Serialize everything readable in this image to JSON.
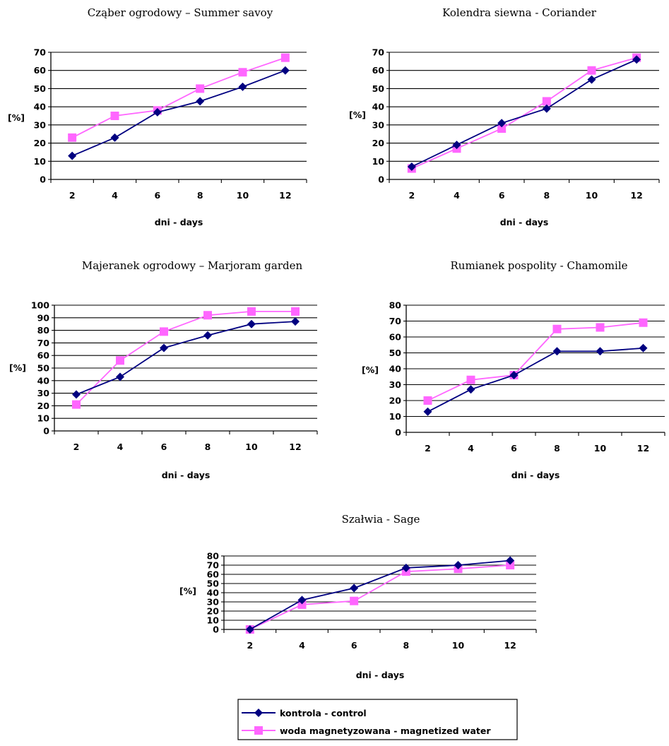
{
  "chart_data": [
    {
      "type": "line",
      "title": "Cząber ogrodowy – Summer savoy",
      "xlabel": "dni - days",
      "ylabel": "[%]",
      "categories": [
        "2",
        "4",
        "6",
        "8",
        "10",
        "12"
      ],
      "ylim": [
        0,
        70
      ],
      "ytick_step": 10,
      "grid": true,
      "series": [
        {
          "name": "kontrola - control",
          "values": [
            13,
            23,
            37,
            43,
            51,
            60
          ]
        },
        {
          "name": "woda magnetyzowana - magnetized water",
          "values": [
            23,
            35,
            38,
            50,
            59,
            67
          ]
        }
      ]
    },
    {
      "type": "line",
      "title": "Kolendra siewna - Coriander",
      "xlabel": "dni - days",
      "ylabel": "[%]",
      "categories": [
        "2",
        "4",
        "6",
        "8",
        "10",
        "12"
      ],
      "ylim": [
        0,
        70
      ],
      "ytick_step": 10,
      "grid": true,
      "series": [
        {
          "name": "kontrola - control",
          "values": [
            7,
            19,
            31,
            39,
            55,
            66
          ]
        },
        {
          "name": "woda magnetyzowana - magnetized water",
          "values": [
            6,
            17,
            28,
            43,
            60,
            67
          ]
        }
      ]
    },
    {
      "type": "line",
      "title": "Majeranek ogrodowy – Marjoram garden",
      "xlabel": "dni - days",
      "ylabel": "[%]",
      "categories": [
        "2",
        "4",
        "6",
        "8",
        "10",
        "12"
      ],
      "ylim": [
        0,
        100
      ],
      "ytick_step": 10,
      "grid": true,
      "series": [
        {
          "name": "kontrola - control",
          "values": [
            29,
            43,
            66,
            76,
            85,
            87
          ]
        },
        {
          "name": "woda magnetyzowana - magnetized water",
          "values": [
            21,
            56,
            79,
            92,
            95,
            95
          ]
        }
      ]
    },
    {
      "type": "line",
      "title": "Rumianek pospolity - Chamomile",
      "xlabel": "dni - days",
      "ylabel": "[%]",
      "categories": [
        "2",
        "4",
        "6",
        "8",
        "10",
        "12"
      ],
      "ylim": [
        0,
        80
      ],
      "ytick_step": 10,
      "grid": true,
      "series": [
        {
          "name": "kontrola - control",
          "values": [
            13,
            27,
            36,
            51,
            51,
            53
          ]
        },
        {
          "name": "woda magnetyzowana - magnetized water",
          "values": [
            20,
            33,
            36,
            65,
            66,
            69
          ]
        }
      ]
    },
    {
      "type": "line",
      "title": "Szałwia - Sage",
      "xlabel": "dni - days",
      "ylabel": "[%]",
      "categories": [
        "2",
        "4",
        "6",
        "8",
        "10",
        "12"
      ],
      "ylim": [
        0,
        80
      ],
      "ytick_step": 10,
      "grid": true,
      "series": [
        {
          "name": "kontrola - control",
          "values": [
            0,
            32,
            45,
            67,
            70,
            75
          ]
        },
        {
          "name": "woda magnetyzowana - magnetized water",
          "values": [
            0,
            27,
            31,
            63,
            66,
            70
          ]
        }
      ]
    }
  ],
  "legend": {
    "items": [
      {
        "label": "kontrola - control",
        "marker": "diamond",
        "color": "#000080"
      },
      {
        "label": "woda magnetyzowana - magnetized water",
        "marker": "square",
        "color": "#FF66FF"
      }
    ]
  },
  "colors": {
    "control": "#000080",
    "magnetized": "#FF66FF",
    "gridline": "#000000"
  }
}
